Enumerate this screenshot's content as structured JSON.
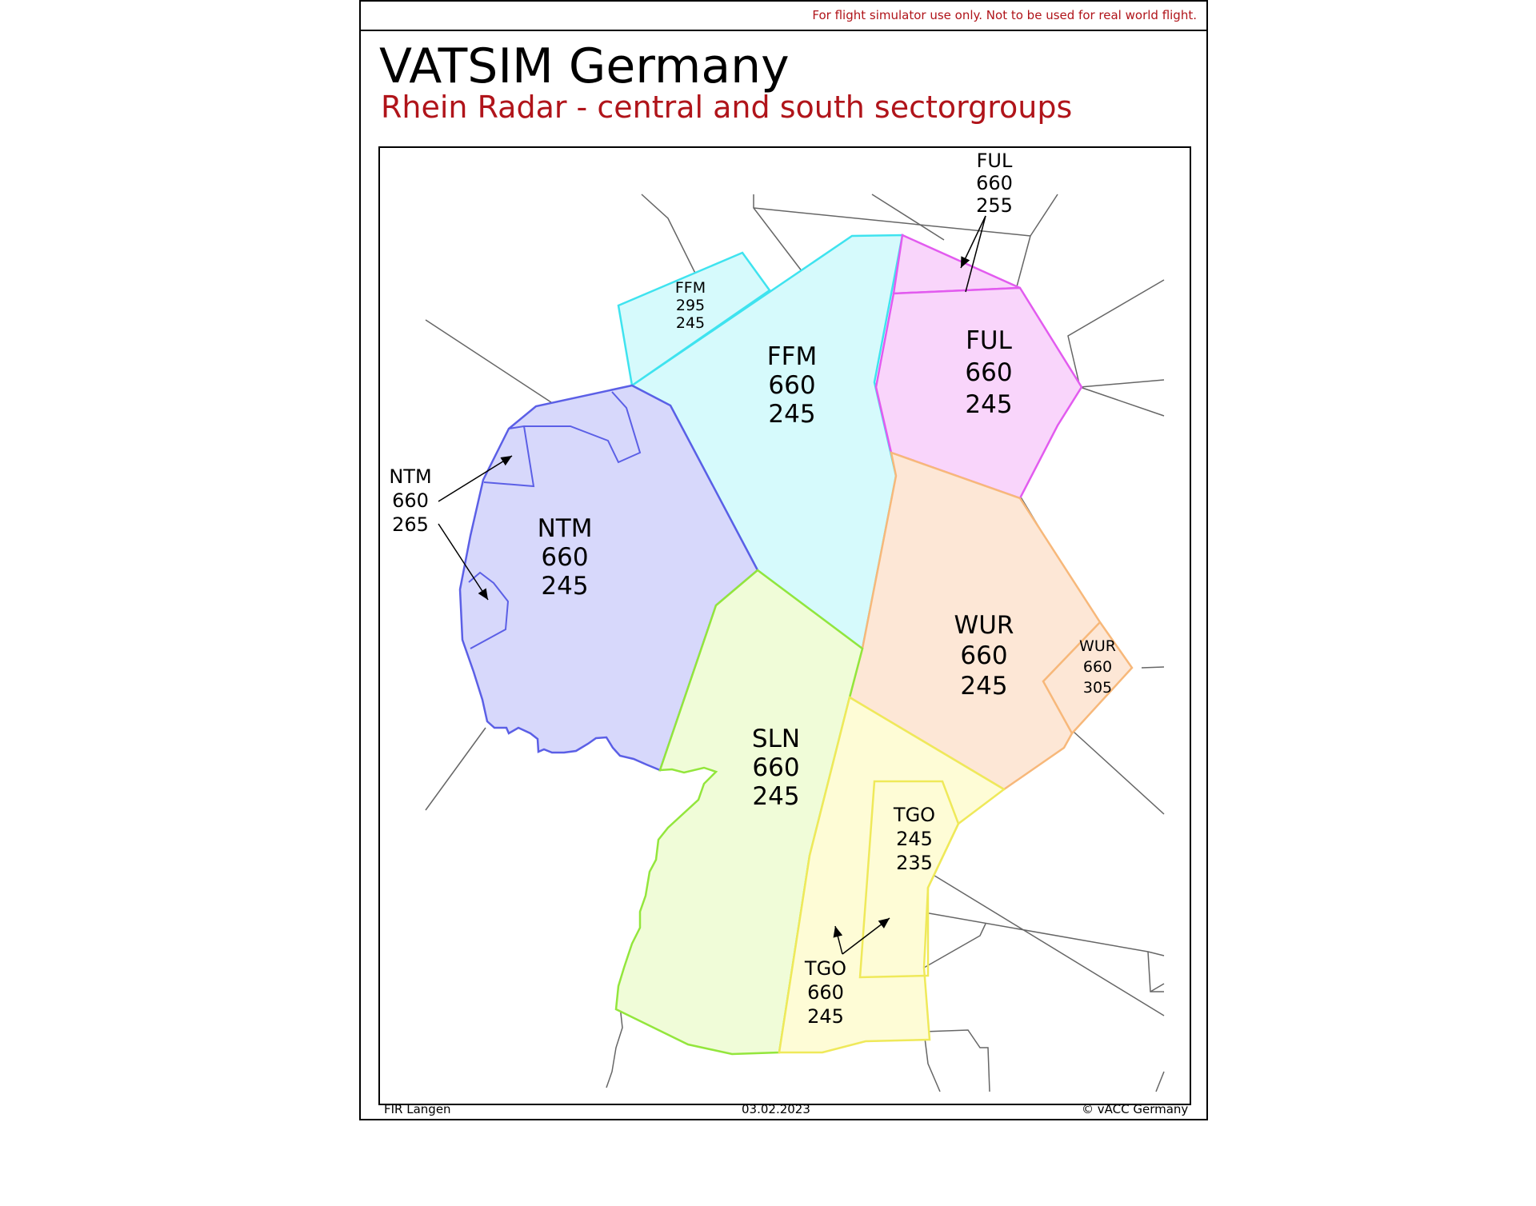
{
  "header": {
    "disclaimer": "For flight simulator use only. Not to be used for real world flight.",
    "title": "VATSIM Germany",
    "subtitle": "Rhein Radar - central and south sectorgroups"
  },
  "footer": {
    "left": "FIR Langen",
    "center": "03.02.2023",
    "right": "© vACC Germany"
  },
  "colors": {
    "subtitle": "#b0141a",
    "ffm_fill": "#d6fafc",
    "ffm_stroke": "#3fe3ef",
    "ful_fill": "#f9d5fb",
    "ful_stroke": "#e25bef",
    "ntm_fill": "#d7d8fb",
    "ntm_stroke": "#5b5fe6",
    "wur_fill": "#fde7d6",
    "wur_stroke": "#f7b87a",
    "sln_fill": "#f0fcd8",
    "sln_stroke": "#93e63c",
    "tgo_fill": "#fefcd6",
    "tgo_stroke": "#efe95a",
    "boundary": "#666666"
  },
  "sectors": {
    "ffm_main": {
      "name": "FFM",
      "upper": "660",
      "lower": "245"
    },
    "ffm_small": {
      "name": "FFM",
      "upper": "295",
      "lower": "245"
    },
    "ful_main": {
      "name": "FUL",
      "upper": "660",
      "lower": "245"
    },
    "ful_north": {
      "name": "FUL",
      "upper": "660",
      "lower": "255"
    },
    "ntm_main": {
      "name": "NTM",
      "upper": "660",
      "lower": "245"
    },
    "ntm_west": {
      "name": "NTM",
      "upper": "660",
      "lower": "265"
    },
    "wur_main": {
      "name": "WUR",
      "upper": "660",
      "lower": "245"
    },
    "wur_east": {
      "name": "WUR",
      "upper": "660",
      "lower": "305"
    },
    "sln_main": {
      "name": "SLN",
      "upper": "660",
      "lower": "245"
    },
    "tgo_main": {
      "name": "TGO",
      "upper": "660",
      "lower": "245"
    },
    "tgo_inner": {
      "name": "TGO",
      "upper": "245",
      "lower": "235"
    }
  }
}
